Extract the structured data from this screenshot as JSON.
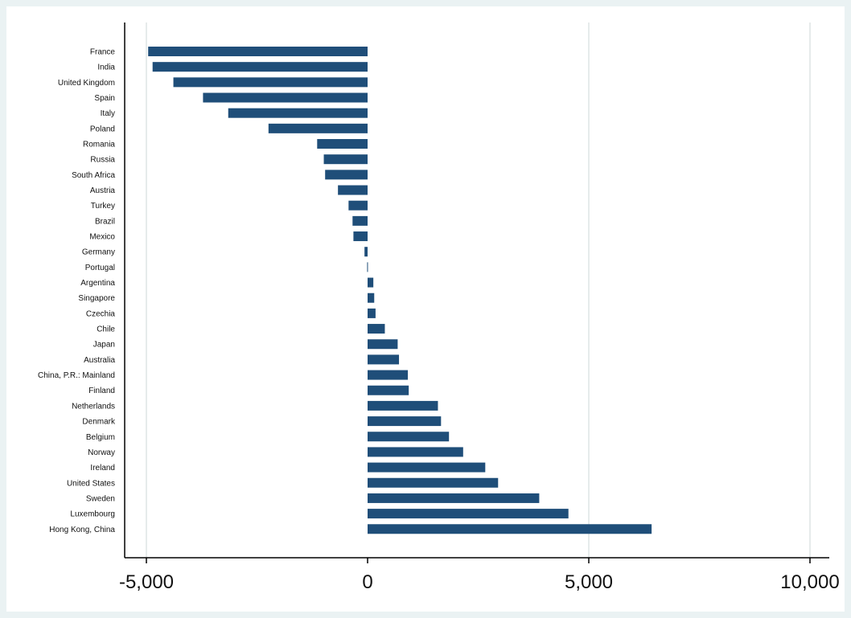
{
  "chart_data": {
    "type": "bar",
    "orientation": "horizontal",
    "title": "",
    "xlabel": "",
    "ylabel": "",
    "categories": [
      "France",
      "India",
      "United Kingdom",
      "Spain",
      "Italy",
      "Poland",
      "Romania",
      "Russia",
      "South Africa",
      "Austria",
      "Turkey",
      "Brazil",
      "Mexico",
      "Germany",
      "Portugal",
      "Argentina",
      "Singapore",
      "Czechia",
      "Chile",
      "Japan",
      "Australia",
      "China, P.R.: Mainland",
      "Finland",
      "Netherlands",
      "Denmark",
      "Belgium",
      "Norway",
      "Ireland",
      "United States",
      "Sweden",
      "Luxembourg",
      "Hong Kong, China"
    ],
    "values": [
      -4960,
      -4860,
      -4390,
      -3720,
      -3150,
      -2240,
      -1140,
      -990,
      -960,
      -670,
      -430,
      -340,
      -320,
      -70,
      -10,
      130,
      150,
      180,
      390,
      680,
      710,
      910,
      930,
      1590,
      1660,
      1840,
      2160,
      2660,
      2950,
      3880,
      4540,
      6420
    ],
    "xlim": [
      -5500,
      10500
    ],
    "xticks": [
      -5000,
      0,
      5000,
      10000
    ],
    "xtick_labels": [
      "-5,000",
      "0",
      "5,000",
      "10,000"
    ],
    "grid": "vertical",
    "bar_color": "#1f4e79",
    "plot_background": "#ffffff",
    "outer_background": "#eaf2f3",
    "gridline_color": "#e6ebeb"
  }
}
